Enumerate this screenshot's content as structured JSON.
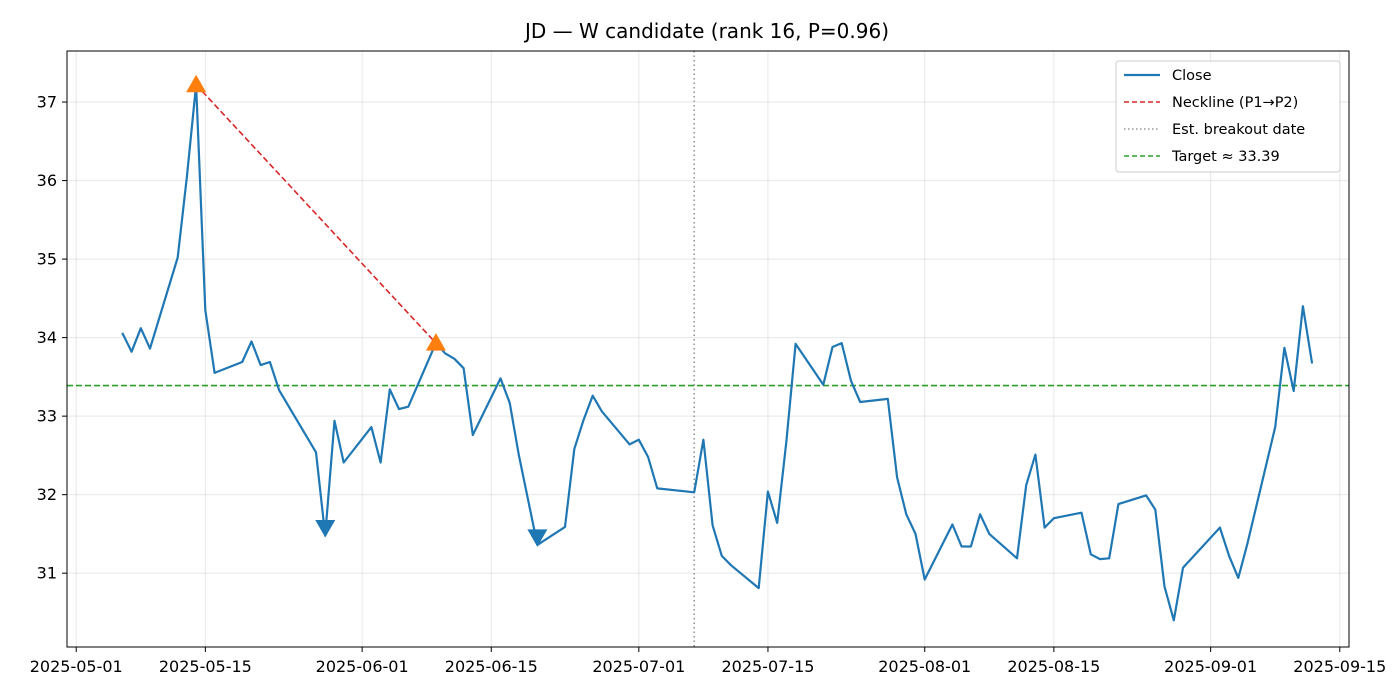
{
  "chart_data": {
    "type": "line",
    "title": "JD — W candidate (rank 16, P=0.96)",
    "xlabel": "",
    "ylabel": "",
    "x_ticks": [
      "2025-05-01",
      "2025-05-15",
      "2025-06-01",
      "2025-06-15",
      "2025-07-01",
      "2025-07-15",
      "2025-08-01",
      "2025-08-15",
      "2025-09-01",
      "2025-09-15"
    ],
    "y_ticks": [
      31,
      32,
      33,
      34,
      35,
      36,
      37
    ],
    "xlim": [
      "2025-04-30",
      "2025-09-16"
    ],
    "ylim": [
      30.06,
      37.65
    ],
    "grid": true,
    "legend_position": "top-right",
    "series": [
      {
        "name": "Close",
        "color": "#1f77b4",
        "points": [
          [
            "2025-05-06",
            34.06
          ],
          [
            "2025-05-07",
            33.82
          ],
          [
            "2025-05-08",
            34.12
          ],
          [
            "2025-05-09",
            33.86
          ],
          [
            "2025-05-12",
            35.02
          ],
          [
            "2025-05-13",
            36.05
          ],
          [
            "2025-05-14",
            37.22
          ],
          [
            "2025-05-15",
            34.35
          ],
          [
            "2025-05-16",
            33.55
          ],
          [
            "2025-05-19",
            33.69
          ],
          [
            "2025-05-20",
            33.95
          ],
          [
            "2025-05-21",
            33.65
          ],
          [
            "2025-05-22",
            33.69
          ],
          [
            "2025-05-23",
            33.33
          ],
          [
            "2025-05-27",
            32.54
          ],
          [
            "2025-05-28",
            31.48
          ],
          [
            "2025-05-29",
            32.94
          ],
          [
            "2025-05-30",
            32.41
          ],
          [
            "2025-06-02",
            32.86
          ],
          [
            "2025-06-03",
            32.41
          ],
          [
            "2025-06-04",
            33.34
          ],
          [
            "2025-06-05",
            33.09
          ],
          [
            "2025-06-06",
            33.12
          ],
          [
            "2025-06-09",
            33.93
          ],
          [
            "2025-06-10",
            33.8
          ],
          [
            "2025-06-11",
            33.73
          ],
          [
            "2025-06-12",
            33.61
          ],
          [
            "2025-06-13",
            32.76
          ],
          [
            "2025-06-16",
            33.48
          ],
          [
            "2025-06-17",
            33.17
          ],
          [
            "2025-06-18",
            32.5
          ],
          [
            "2025-06-20",
            31.36
          ],
          [
            "2025-06-23",
            31.59
          ],
          [
            "2025-06-24",
            32.58
          ],
          [
            "2025-06-25",
            32.95
          ],
          [
            "2025-06-26",
            33.26
          ],
          [
            "2025-06-27",
            33.06
          ],
          [
            "2025-06-30",
            32.64
          ],
          [
            "2025-07-01",
            32.7
          ],
          [
            "2025-07-02",
            32.48
          ],
          [
            "2025-07-03",
            32.08
          ],
          [
            "2025-07-07",
            32.03
          ],
          [
            "2025-07-08",
            32.7
          ],
          [
            "2025-07-09",
            31.61
          ],
          [
            "2025-07-10",
            31.22
          ],
          [
            "2025-07-11",
            31.1
          ],
          [
            "2025-07-14",
            30.81
          ],
          [
            "2025-07-15",
            32.04
          ],
          [
            "2025-07-16",
            31.64
          ],
          [
            "2025-07-17",
            32.68
          ],
          [
            "2025-07-18",
            33.92
          ],
          [
            "2025-07-21",
            33.4
          ],
          [
            "2025-07-22",
            33.88
          ],
          [
            "2025-07-23",
            33.93
          ],
          [
            "2025-07-24",
            33.45
          ],
          [
            "2025-07-25",
            33.18
          ],
          [
            "2025-07-28",
            33.22
          ],
          [
            "2025-07-29",
            32.22
          ],
          [
            "2025-07-30",
            31.75
          ],
          [
            "2025-07-31",
            31.5
          ],
          [
            "2025-08-01",
            30.92
          ],
          [
            "2025-08-04",
            31.62
          ],
          [
            "2025-08-05",
            31.34
          ],
          [
            "2025-08-06",
            31.34
          ],
          [
            "2025-08-07",
            31.75
          ],
          [
            "2025-08-08",
            31.5
          ],
          [
            "2025-08-11",
            31.19
          ],
          [
            "2025-08-12",
            32.12
          ],
          [
            "2025-08-13",
            32.51
          ],
          [
            "2025-08-14",
            31.58
          ],
          [
            "2025-08-15",
            31.7
          ],
          [
            "2025-08-18",
            31.77
          ],
          [
            "2025-08-19",
            31.24
          ],
          [
            "2025-08-20",
            31.18
          ],
          [
            "2025-08-21",
            31.19
          ],
          [
            "2025-08-22",
            31.88
          ],
          [
            "2025-08-25",
            31.99
          ],
          [
            "2025-08-26",
            31.81
          ],
          [
            "2025-08-27",
            30.83
          ],
          [
            "2025-08-28",
            30.4
          ],
          [
            "2025-08-29",
            31.07
          ],
          [
            "2025-09-02",
            31.58
          ],
          [
            "2025-09-03",
            31.22
          ],
          [
            "2025-09-04",
            30.94
          ],
          [
            "2025-09-05",
            31.38
          ],
          [
            "2025-09-08",
            32.86
          ],
          [
            "2025-09-09",
            33.87
          ],
          [
            "2025-09-10",
            33.32
          ],
          [
            "2025-09-11",
            34.4
          ],
          [
            "2025-09-12",
            33.67
          ]
        ]
      },
      {
        "name": "Neckline (P1→P2)",
        "color": "#d62728",
        "style": "dashed",
        "points": [
          [
            "2025-05-14",
            37.22
          ],
          [
            "2025-06-09",
            33.93
          ]
        ]
      },
      {
        "name": "Est. breakout date",
        "color": "#808080",
        "style": "dotted",
        "x": "2025-07-07"
      },
      {
        "name": "Target ≈ 33.39",
        "color": "#2ca02c",
        "style": "dashed",
        "y": 33.39
      }
    ],
    "peaks": {
      "color": "#ff7f0e",
      "points": [
        [
          "2025-05-14",
          37.22
        ],
        [
          "2025-06-09",
          33.93
        ]
      ]
    },
    "troughs": {
      "color": "#1f77b4",
      "points": [
        [
          "2025-05-28",
          31.48
        ],
        [
          "2025-06-20",
          31.36
        ]
      ]
    }
  }
}
